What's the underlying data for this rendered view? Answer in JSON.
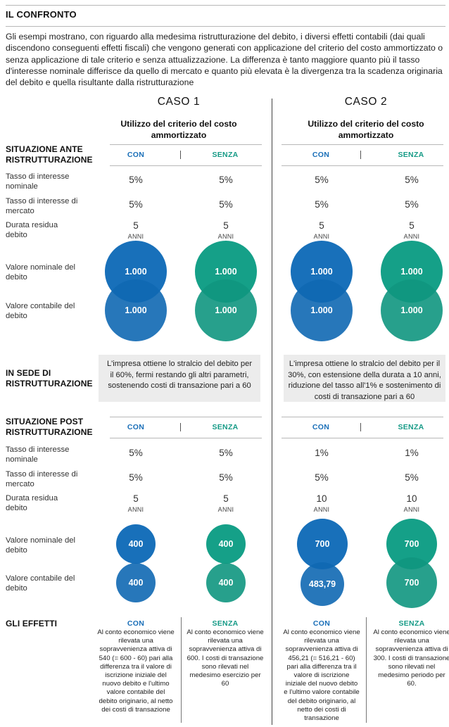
{
  "title": "IL CONFRONTO",
  "intro": "Gli esempi mostrano, con riguardo alla medesima ristrutturazione del debito, i diversi effetti contabili (dai quali discendono conseguenti effetti fiscali) che vengono generati con applicazione del criterio del costo ammortizzato o senza applicazione di tale criterio e senza attualizzazione. La differenza è tanto maggiore quanto più  il tasso d'interesse nominale differisce da quello di mercato e quanto più elevata è la divergenza tra la scadenza originaria del debito e quella risultante dalla ristrutturazione",
  "chart_data": {
    "type": "table",
    "title": "IL CONFRONTO",
    "cases": [
      {
        "name": "CASO 1",
        "criterion": "Utilizzo del criterio del costo ammortizzato"
      },
      {
        "name": "CASO 2",
        "criterion": "Utilizzo del criterio del costo ammortizzato"
      }
    ],
    "columns": [
      "CON",
      "SENZA"
    ],
    "unit_label": "ANNI",
    "colors": {
      "con": "#1870ba",
      "senza": "#15a088"
    },
    "sections": {
      "ante": "SITUAZIONE ANTE RISTRUTTURAZIONE",
      "sede": "IN SEDE DI RISTRUTTURAZIONE",
      "post": "SITUAZIONE POST RISTRUTTURAZIONE",
      "effetti": "GLI EFFETTI"
    },
    "row_labels": {
      "tasso_nominale": "Tasso di interesse nominale",
      "tasso_mercato": "Tasso di interesse di mercato",
      "durata": "Durata residua debito",
      "valore_nominale": "Valore nominale del debito",
      "valore_contabile": "Valore contabile del debito"
    },
    "ante": {
      "caso1_con": {
        "tasso_nominale": "5%",
        "tasso_mercato": "5%",
        "durata": "5",
        "valore_nominale": "1.000",
        "valore_contabile": "1.000"
      },
      "caso1_senza": {
        "tasso_nominale": "5%",
        "tasso_mercato": "5%",
        "durata": "5",
        "valore_nominale": "1.000",
        "valore_contabile": "1.000"
      },
      "caso2_con": {
        "tasso_nominale": "5%",
        "tasso_mercato": "5%",
        "durata": "5",
        "valore_nominale": "1.000",
        "valore_contabile": "1.000"
      },
      "caso2_senza": {
        "tasso_nominale": "5%",
        "tasso_mercato": "5%",
        "durata": "5",
        "valore_nominale": "1.000",
        "valore_contabile": "1.000"
      }
    },
    "sede": {
      "caso1": "L'impresa ottiene lo stralcio del debito per il 60%, fermi restando gli altri parametri, sostenendo costi di transazione pari a 60",
      "caso2": "L'impresa ottiene lo stralcio del debito per il 30%, con estensione della durata a 10 anni, riduzione del tasso all'1% e sostenimento di costi di transazione pari a 60"
    },
    "post": {
      "caso1_con": {
        "tasso_nominale": "5%",
        "tasso_mercato": "5%",
        "durata": "5",
        "valore_nominale": "400",
        "valore_contabile": "400"
      },
      "caso1_senza": {
        "tasso_nominale": "5%",
        "tasso_mercato": "5%",
        "durata": "5",
        "valore_nominale": "400",
        "valore_contabile": "400"
      },
      "caso2_con": {
        "tasso_nominale": "1%",
        "tasso_mercato": "5%",
        "durata": "10",
        "valore_nominale": "700",
        "valore_contabile": "483,79"
      },
      "caso2_senza": {
        "tasso_nominale": "1%",
        "tasso_mercato": "5%",
        "durata": "10",
        "valore_nominale": "700",
        "valore_contabile": "700"
      }
    },
    "effetti": {
      "caso1_con": "Al conto economico viene rilevata una sopravvenienza attiva di 540 (= 600  - 60) pari alla differenza tra il valore di iscrizione iniziale del nuovo debito e l'ultimo valore contabile del debito originario, al netto dei costi di transazione",
      "caso1_senza": "Al conto economico viene rilevata una sopravvenienza attiva di 600. I costi di transazione sono rilevati nel medesimo esercizio per 60",
      "caso2_con": "Al conto economico viene rilevata una sopravvenienza attiva di 456,21 (= 516,21  - 60) pari alla differenza tra il valore di iscrizione iniziale del nuovo debito e l'ultimo valore contabile del debito originario, al netto dei costi di transazione",
      "caso2_senza": "Al conto economico viene rilevata una sopravvenienza attiva di 300. I costi di transazione sono rilevati nel medesimo periodo per 60."
    }
  }
}
